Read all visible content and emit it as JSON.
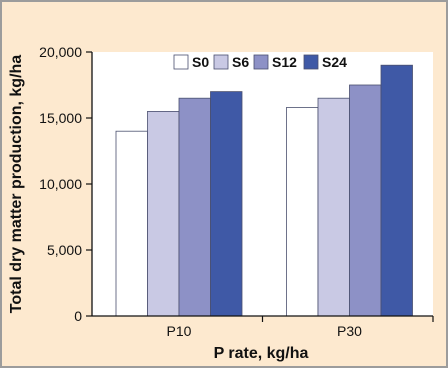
{
  "chart_data": {
    "type": "bar",
    "categories": [
      "P10",
      "P30"
    ],
    "series": [
      {
        "name": "S0",
        "values": [
          14000,
          15800
        ],
        "color": "#ffffff"
      },
      {
        "name": "S6",
        "values": [
          15500,
          16500
        ],
        "color": "#c9c9e4"
      },
      {
        "name": "S12",
        "values": [
          16500,
          17500
        ],
        "color": "#8d91c6"
      },
      {
        "name": "S24",
        "values": [
          17000,
          19000
        ],
        "color": "#3f59a6"
      }
    ],
    "xlabel": "P rate, kg/ha",
    "ylabel": "Total dry matter production, kg/ha",
    "ylim": [
      0,
      20000
    ],
    "yticks": [
      0,
      5000,
      10000,
      15000,
      20000
    ],
    "ytick_labels": [
      "0",
      "5,000",
      "10,000",
      "15,000",
      "20,000"
    ],
    "grid": false,
    "legend_position": "top-center"
  }
}
